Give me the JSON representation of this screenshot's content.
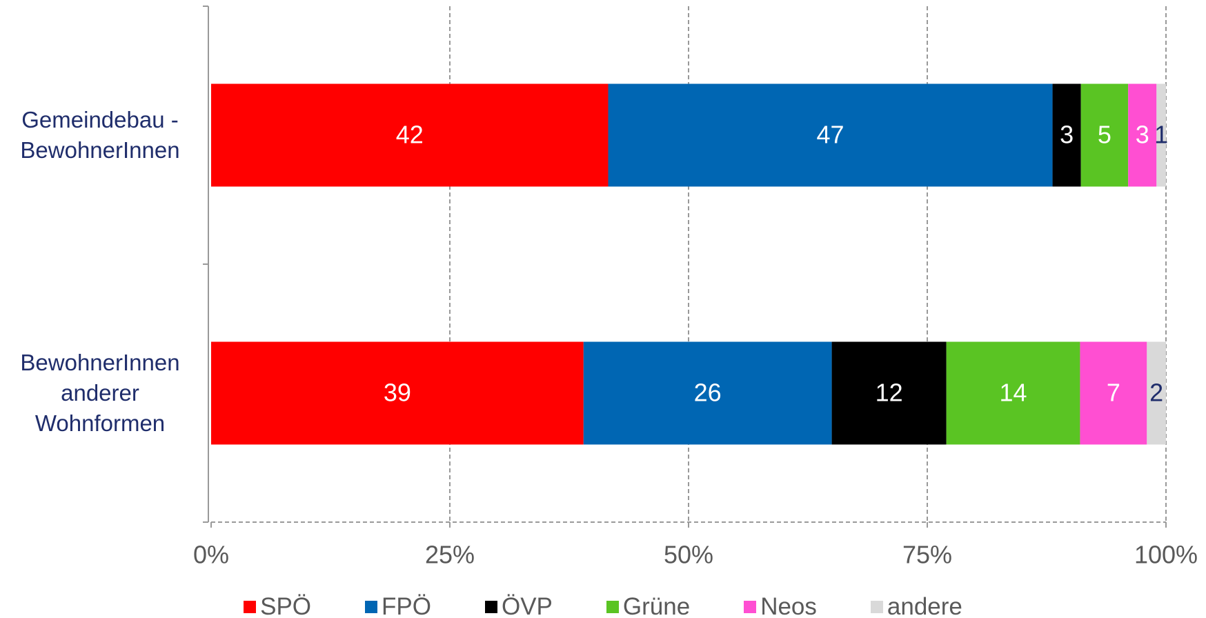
{
  "chart_data": {
    "type": "stacked_bar_100",
    "orientation": "horizontal",
    "categories": [
      "Gemeindebau -\nBewohnerInnen",
      "BewohnerInnen\nanderer\nWohnformen"
    ],
    "series": [
      {
        "name": "SPÖ",
        "color": "#ff0000",
        "label_color": "#ffffff",
        "values": [
          42,
          39
        ]
      },
      {
        "name": "FPÖ",
        "color": "#0066b3",
        "label_color": "#ffffff",
        "values": [
          47,
          26
        ]
      },
      {
        "name": "ÖVP",
        "color": "#000000",
        "label_color": "#ffffff",
        "values": [
          3,
          12
        ]
      },
      {
        "name": "Grüne",
        "color": "#5ac423",
        "label_color": "#ffffff",
        "values": [
          5,
          14
        ]
      },
      {
        "name": "Neos",
        "color": "#ff4fd2",
        "label_color": "#ffffff",
        "values": [
          3,
          7
        ]
      },
      {
        "name": "andere",
        "color": "#d9d9d9",
        "label_color": "#1f2d6b",
        "values": [
          1,
          2
        ]
      }
    ],
    "xlim": [
      0,
      100
    ],
    "xticks": [
      {
        "value": 0,
        "label": "0%"
      },
      {
        "value": 25,
        "label": "25%"
      },
      {
        "value": 50,
        "label": "50%"
      },
      {
        "value": 75,
        "label": "75%"
      },
      {
        "value": 100,
        "label": "100%"
      }
    ],
    "grid": true,
    "legend": "bottom"
  }
}
